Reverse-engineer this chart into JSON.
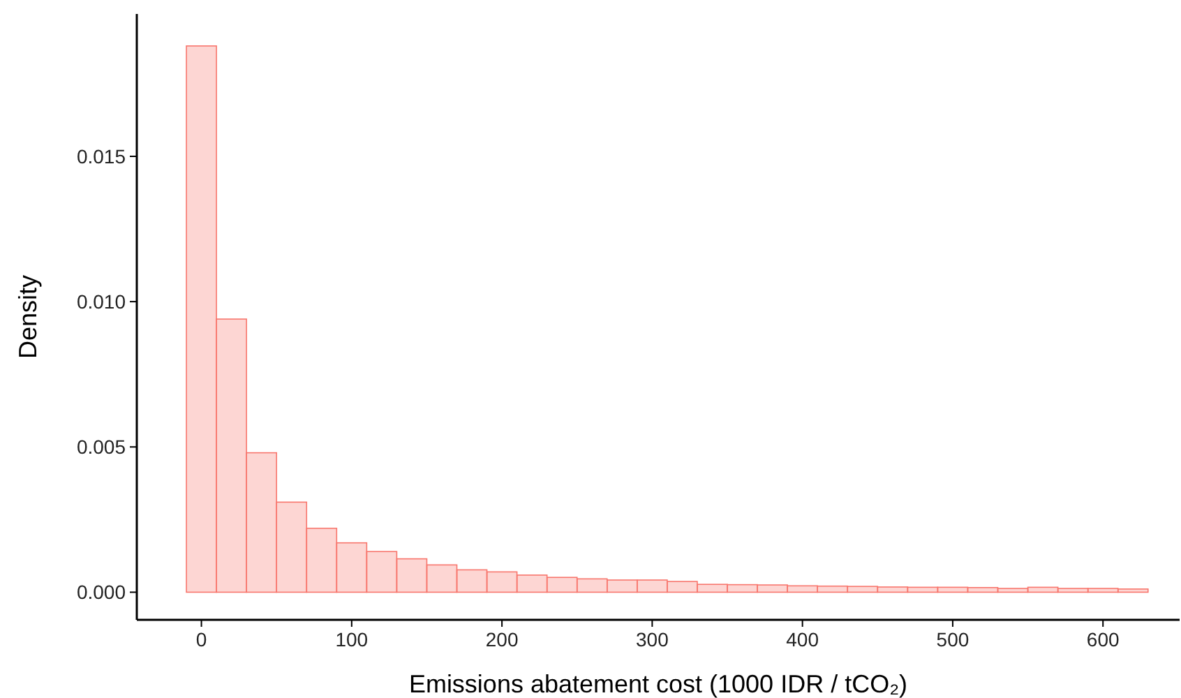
{
  "chart_data": {
    "type": "histogram",
    "xlabel": "Emissions abatement cost (1000 IDR / tCO₂)",
    "ylabel": "Density",
    "color": "#f8766d",
    "bins": [
      -10,
      10,
      30,
      50,
      70,
      90,
      110,
      130,
      150,
      170,
      190,
      210,
      230,
      250,
      270,
      290,
      310,
      330,
      350,
      370,
      390,
      410,
      430,
      450,
      470,
      490,
      510,
      530,
      550,
      570,
      590,
      610,
      630
    ],
    "values": [
      0.0188,
      0.0094,
      0.0048,
      0.0031,
      0.0022,
      0.0017,
      0.0014,
      0.00115,
      0.00094,
      0.00077,
      0.0007,
      0.00059,
      0.00051,
      0.00046,
      0.00042,
      0.00042,
      0.00037,
      0.00027,
      0.00026,
      0.00025,
      0.00022,
      0.00021,
      0.0002,
      0.00018,
      0.00017,
      0.00017,
      0.00016,
      0.00013,
      0.00017,
      0.00013,
      0.00013,
      0.00011
    ],
    "xlim": [
      -43,
      651
    ],
    "ylim": [
      -0.00095,
      0.0199
    ],
    "xticks": [
      0,
      100,
      200,
      300,
      400,
      500,
      600
    ],
    "yticks": [
      {
        "value": 0,
        "label": "0.000"
      },
      {
        "value": 0.005,
        "label": "0.005"
      },
      {
        "value": 0.01,
        "label": "0.010"
      },
      {
        "value": 0.015,
        "label": "0.015"
      }
    ],
    "grid": false
  }
}
